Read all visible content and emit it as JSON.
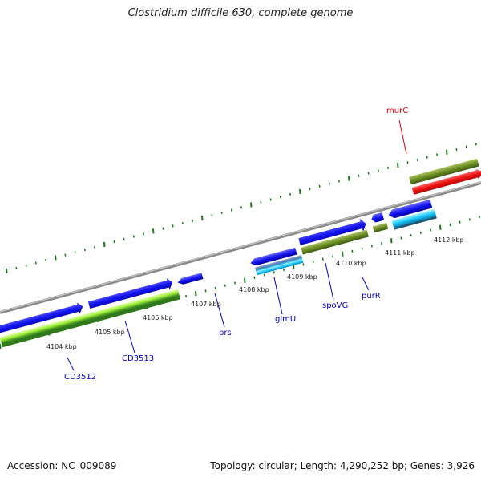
{
  "title": "Clostridium difficile 630, complete genome",
  "footer": {
    "accession": "Accession: NC_009089",
    "summary": "Topology: circular; Length: 4,290,252 bp; Genes: 3,926"
  },
  "kbp_labels": [
    "4104 kbp",
    "4105 kbp",
    "4106 kbp",
    "4107 kbp",
    "4108 kbp",
    "4109 kbp",
    "4110 kbp",
    "4111 kbp",
    "4112 kbp"
  ],
  "genes": [
    {
      "name": "CD3512",
      "color": "#0000cc"
    },
    {
      "name": "CD3513",
      "color": "#0000cc"
    },
    {
      "name": "prs",
      "color": "#0000cc"
    },
    {
      "name": "glmU",
      "color": "#0000cc"
    },
    {
      "name": "spoVG",
      "color": "#0000cc"
    },
    {
      "name": "purR",
      "color": "#0000cc"
    },
    {
      "name": "murC",
      "color": "#dd0000"
    }
  ],
  "colors": {
    "backbone": "#888888",
    "tick": "#1a7a1a",
    "cds_blue": "#1010ee",
    "feature_green": "#6b8e23",
    "feature_lime": "#99ee33",
    "feature_cyan": "#22ccff",
    "feature_red": "#ee1111"
  }
}
